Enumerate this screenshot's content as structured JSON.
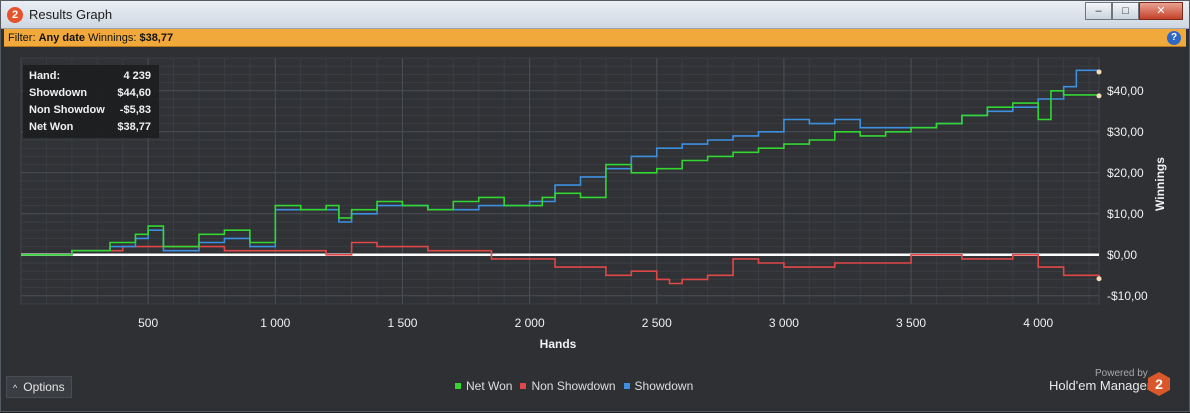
{
  "window": {
    "title": "Results Graph",
    "app_icon_text": "2",
    "minimize": "–",
    "maximize": "□",
    "close": "✕"
  },
  "filter": {
    "prefix": "Filter:",
    "date": "Any date",
    "winnings_label": "Winnings:",
    "winnings_value": "$38,77",
    "help": "?"
  },
  "info": {
    "rows": [
      {
        "label": "Hand:",
        "value": "4 239"
      },
      {
        "label": "Showdown",
        "value": "$44,60"
      },
      {
        "label": "Non Showdown",
        "value": "-$5,83"
      },
      {
        "label": "Net Won",
        "value": "$38,77"
      }
    ]
  },
  "footer": {
    "options_label": "Options",
    "powered_by": "Powered by",
    "brand": "Hold'em Manager",
    "brand_logo": "2"
  },
  "colors": {
    "net_won": "#33d633",
    "non_showdown": "#e04848",
    "showdown": "#3d8fe0",
    "zero_line": "#ffffff"
  },
  "chart_data": {
    "type": "line",
    "xlabel": "Hands",
    "ylabel": "Winnings",
    "xlim": [
      0,
      4239
    ],
    "ylim": [
      -12,
      48
    ],
    "x_ticks": [
      500,
      1000,
      1500,
      2000,
      2500,
      3000,
      3500,
      4000
    ],
    "x_tick_labels": [
      "500",
      "1 000",
      "1 500",
      "2 000",
      "2 500",
      "3 000",
      "3 500",
      "4 000"
    ],
    "y_ticks": [
      -10,
      0,
      10,
      20,
      30,
      40
    ],
    "y_tick_labels": [
      "-$10,00",
      "$0,00",
      "$10,00",
      "$20,00",
      "$30,00",
      "$40,00"
    ],
    "grid": true,
    "legend_position": "bottom-center",
    "series": [
      {
        "name": "Net Won",
        "x": [
          0,
          200,
          350,
          450,
          500,
          560,
          700,
          800,
          900,
          1000,
          1100,
          1200,
          1250,
          1300,
          1400,
          1500,
          1600,
          1700,
          1800,
          1900,
          2000,
          2050,
          2100,
          2200,
          2300,
          2400,
          2500,
          2600,
          2700,
          2800,
          2900,
          3000,
          3100,
          3200,
          3300,
          3400,
          3500,
          3600,
          3700,
          3800,
          3900,
          4000,
          4050,
          4100,
          4239
        ],
        "values": [
          0,
          1,
          3,
          5,
          7,
          2,
          5,
          6,
          3,
          12,
          11,
          12,
          9,
          11,
          13,
          12,
          11,
          13,
          14,
          12,
          12,
          14,
          15,
          14,
          22,
          20,
          21,
          23,
          24,
          25,
          26,
          27,
          28,
          30,
          29,
          30,
          31,
          32,
          34,
          36,
          37,
          33,
          40,
          39,
          38.77
        ]
      },
      {
        "name": "Non Showdown",
        "x": [
          0,
          200,
          400,
          600,
          800,
          1000,
          1200,
          1300,
          1400,
          1600,
          1800,
          1850,
          2000,
          2100,
          2300,
          2400,
          2500,
          2550,
          2600,
          2700,
          2800,
          2900,
          3000,
          3200,
          3500,
          3700,
          3900,
          4000,
          4100,
          4239
        ],
        "values": [
          0,
          1,
          2,
          2,
          1,
          1,
          0,
          3,
          2,
          1,
          1,
          -1,
          -1,
          -3,
          -5,
          -4,
          -6,
          -7,
          -6,
          -5,
          -1,
          -2,
          -3,
          -2,
          0,
          -1,
          0,
          -3,
          -5,
          -5.83
        ]
      },
      {
        "name": "Showdown",
        "x": [
          0,
          200,
          350,
          450,
          500,
          560,
          700,
          800,
          900,
          1000,
          1200,
          1250,
          1300,
          1400,
          1600,
          1800,
          2000,
          2100,
          2200,
          2300,
          2400,
          2500,
          2600,
          2700,
          2800,
          2900,
          3000,
          3100,
          3200,
          3300,
          3400,
          3500,
          3600,
          3700,
          3800,
          3900,
          4000,
          4100,
          4150,
          4239
        ],
        "values": [
          0,
          1,
          2,
          4,
          6,
          1,
          3,
          4,
          2,
          11,
          11,
          8,
          10,
          12,
          11,
          12,
          13,
          17,
          19,
          21,
          24,
          26,
          27,
          28,
          29,
          30,
          33,
          32,
          33,
          31,
          31,
          31,
          32,
          34,
          35,
          36,
          38,
          41,
          45,
          44.6
        ]
      }
    ]
  }
}
